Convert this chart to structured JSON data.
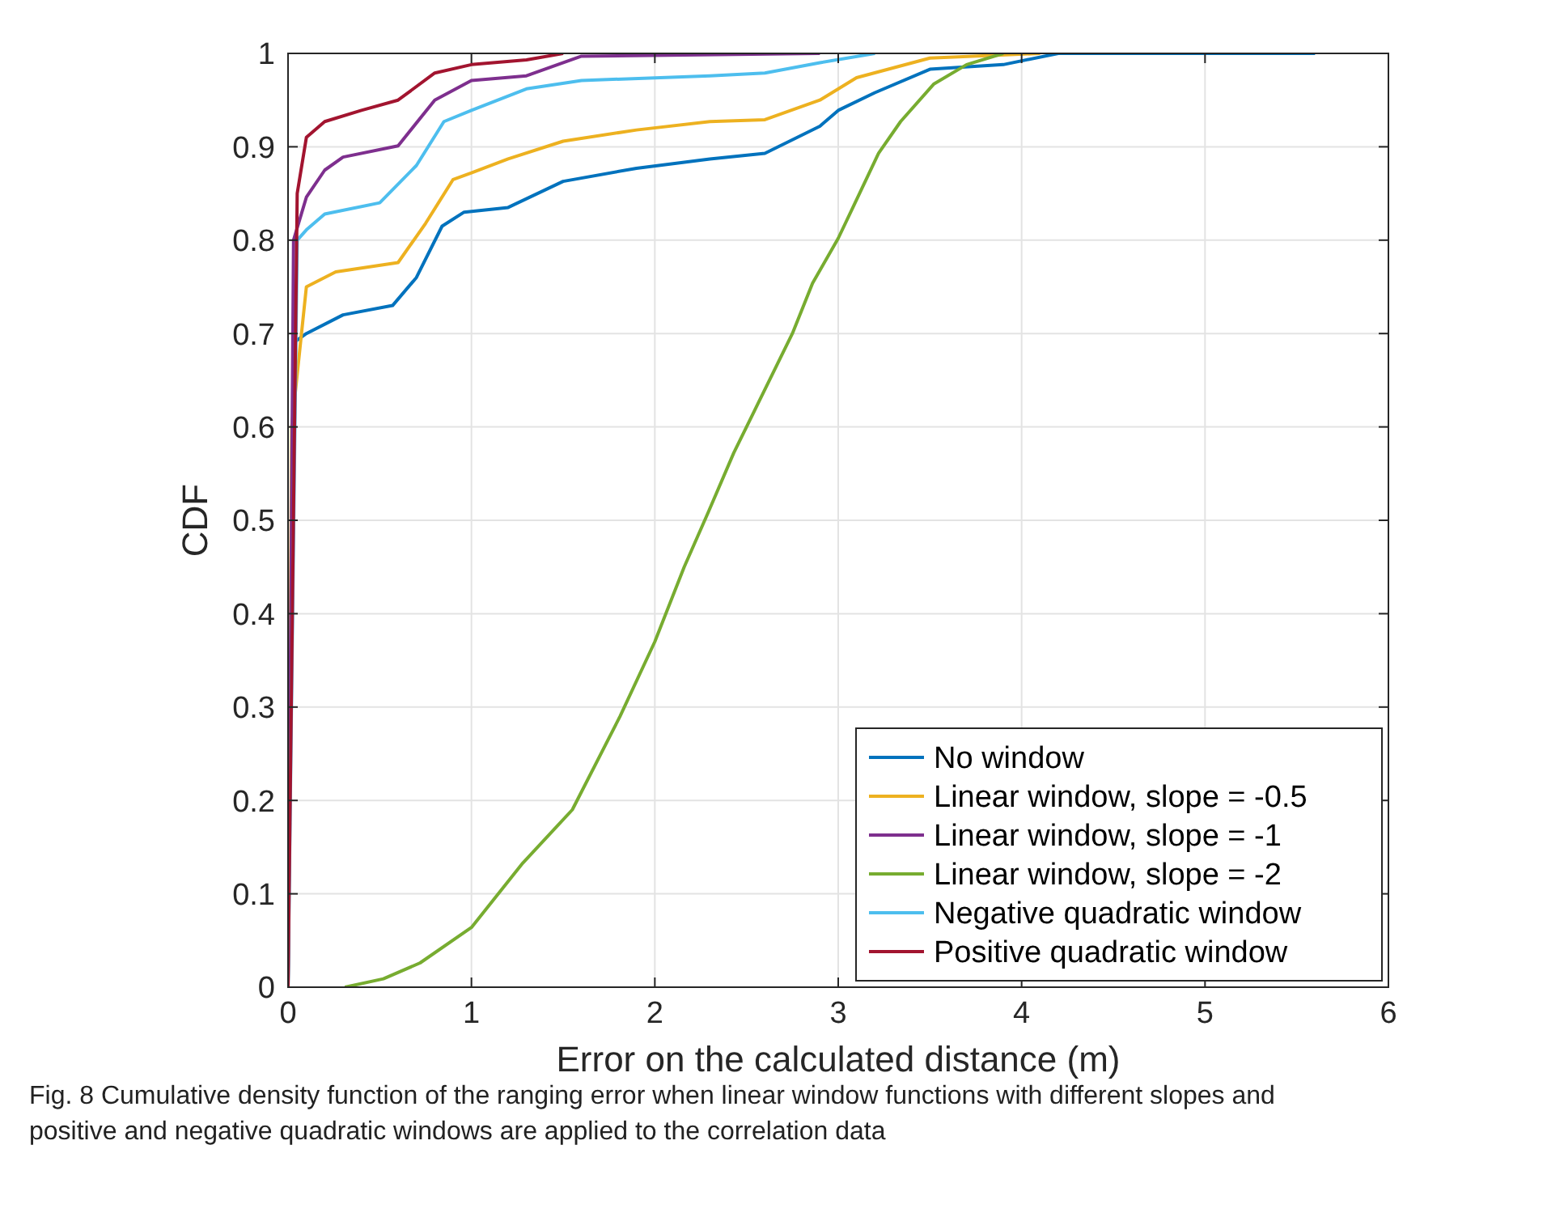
{
  "chart_data": {
    "type": "line",
    "xlabel": "Error on the calculated distance (m)",
    "ylabel": "CDF",
    "xlim": [
      0,
      6
    ],
    "ylim": [
      0,
      1
    ],
    "xticks": [
      0,
      1,
      2,
      3,
      4,
      5,
      6
    ],
    "yticks": [
      0,
      0.1,
      0.2,
      0.3,
      0.4,
      0.5,
      0.6,
      0.7,
      0.8,
      0.9,
      1
    ],
    "grid": true,
    "legend": "bottom right",
    "line_style": "solid",
    "annotations": [
      "Fig. 8 Cumulative density function of the ranging error when linear window functions with different slopes and positive and negative quadratic windows are applied to the correlation data"
    ],
    "series": [
      {
        "name": "No window",
        "color": "#0072bd",
        "x": [
          0,
          0.03,
          0.1,
          0.3,
          0.57,
          0.7,
          0.84,
          0.96,
          1.2,
          1.5,
          1.9,
          2.3,
          2.6,
          2.9,
          3.0,
          3.2,
          3.5,
          3.9,
          4.2,
          5.6
        ],
        "values": [
          0,
          0.69,
          0.7,
          0.72,
          0.73,
          0.76,
          0.815,
          0.83,
          0.835,
          0.863,
          0.877,
          0.887,
          0.893,
          0.922,
          0.939,
          0.958,
          0.983,
          0.988,
          1,
          1
        ]
      },
      {
        "name": "Linear window, slope = -0.5",
        "color": "#edb120",
        "x": [
          0,
          0.02,
          0.1,
          0.26,
          0.6,
          0.75,
          0.9,
          1.0,
          1.2,
          1.5,
          1.9,
          2.3,
          2.6,
          2.9,
          3.1,
          3.5,
          4.1
        ],
        "values": [
          0,
          0.6,
          0.75,
          0.766,
          0.776,
          0.818,
          0.865,
          0.872,
          0.887,
          0.906,
          0.918,
          0.927,
          0.929,
          0.95,
          0.974,
          0.995,
          1
        ]
      },
      {
        "name": "Linear window, slope = -1",
        "color": "#7e2f8e",
        "x": [
          0,
          0.03,
          0.1,
          0.2,
          0.3,
          0.6,
          0.8,
          1.0,
          1.3,
          1.6,
          2.9
        ],
        "values": [
          0,
          0.8,
          0.846,
          0.875,
          0.889,
          0.901,
          0.95,
          0.971,
          0.976,
          0.997,
          1
        ]
      },
      {
        "name": "Linear window, slope = -2",
        "color": "#77ac30",
        "x": [
          0.31,
          0.52,
          0.72,
          1.0,
          1.28,
          1.55,
          1.81,
          2.0,
          2.16,
          2.29,
          2.43,
          2.56,
          2.75,
          2.86,
          3.0,
          3.08,
          3.22,
          3.34,
          3.52,
          3.7,
          3.9
        ],
        "values": [
          0,
          0.009,
          0.026,
          0.064,
          0.133,
          0.19,
          0.29,
          0.37,
          0.45,
          0.508,
          0.572,
          0.624,
          0.7,
          0.754,
          0.802,
          0.835,
          0.893,
          0.927,
          0.967,
          0.988,
          1
        ]
      },
      {
        "name": "Negative quadratic window",
        "color": "#4dbeee",
        "x": [
          0,
          0.05,
          0.1,
          0.2,
          0.5,
          0.7,
          0.85,
          1.0,
          1.3,
          1.6,
          2.3,
          2.6,
          2.9,
          3.2
        ],
        "values": [
          0,
          0.8,
          0.811,
          0.828,
          0.84,
          0.88,
          0.927,
          0.939,
          0.962,
          0.971,
          0.976,
          0.979,
          0.99,
          1
        ]
      },
      {
        "name": "Positive quadratic window",
        "color": "#a2142f",
        "x": [
          0,
          0.05,
          0.1,
          0.2,
          0.4,
          0.6,
          0.8,
          1.0,
          1.3,
          1.5
        ],
        "values": [
          0,
          0.85,
          0.91,
          0.927,
          0.939,
          0.95,
          0.979,
          0.988,
          0.993,
          1
        ]
      }
    ]
  }
}
